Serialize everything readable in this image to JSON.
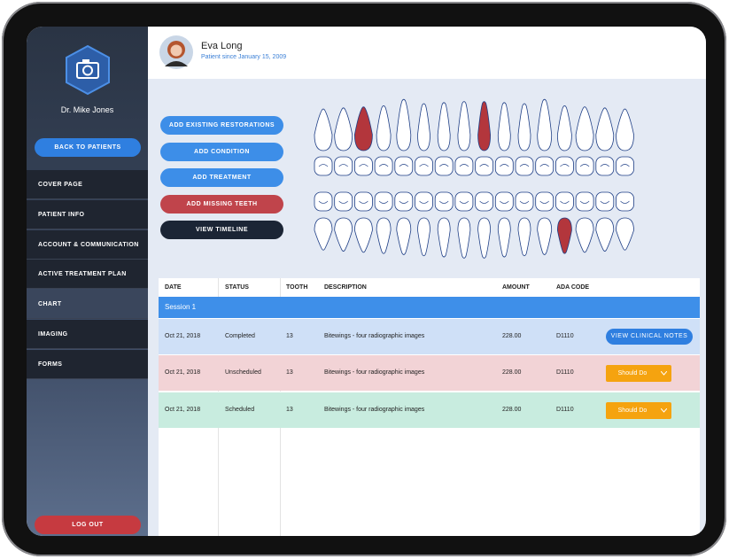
{
  "sidebar": {
    "doctor": "Dr. Mike Jones",
    "back_button": "BACK TO PATIENTS",
    "menu": [
      "COVER PAGE",
      "PATIENT INFO",
      "ACCOUNT & COMMUNICATION",
      "ACTIVE TREATMENT PLAN",
      "CHART",
      "IMAGING",
      "FORMS"
    ],
    "logout": "LOG OUT"
  },
  "header": {
    "name": "Eva Long",
    "subtitle": "Patient since January 15, 2009"
  },
  "actions": [
    "ADD EXISTING RESTORATIONS",
    "ADD CONDITION",
    "ADD TREATMENT",
    "ADD MISSING TEETH",
    "VIEW TIMELINE"
  ],
  "table": {
    "columns": [
      "DATE",
      "STATUS",
      "TOOTH",
      "DESCRIPTION",
      "AMOUNT",
      "ADA CODE"
    ],
    "session": "Session 1",
    "rows": [
      {
        "date": "Oct 21, 2018",
        "status": "Completed",
        "tooth": "13",
        "description": "Bitewings - four radiographic images",
        "amount": "228.00",
        "code": "D1110",
        "action": "VIEW CLINICAL NOTES"
      },
      {
        "date": "Oct 21, 2018",
        "status": "Unscheduled",
        "tooth": "13",
        "description": "Bitewings - four radiographic images",
        "amount": "228.00",
        "code": "D1110",
        "action": "Should Do"
      },
      {
        "date": "Oct 21, 2018",
        "status": "Scheduled",
        "tooth": "13",
        "description": "Bitewings - four radiographic images",
        "amount": "228.00",
        "code": "D1110",
        "action": "Should Do"
      }
    ]
  }
}
